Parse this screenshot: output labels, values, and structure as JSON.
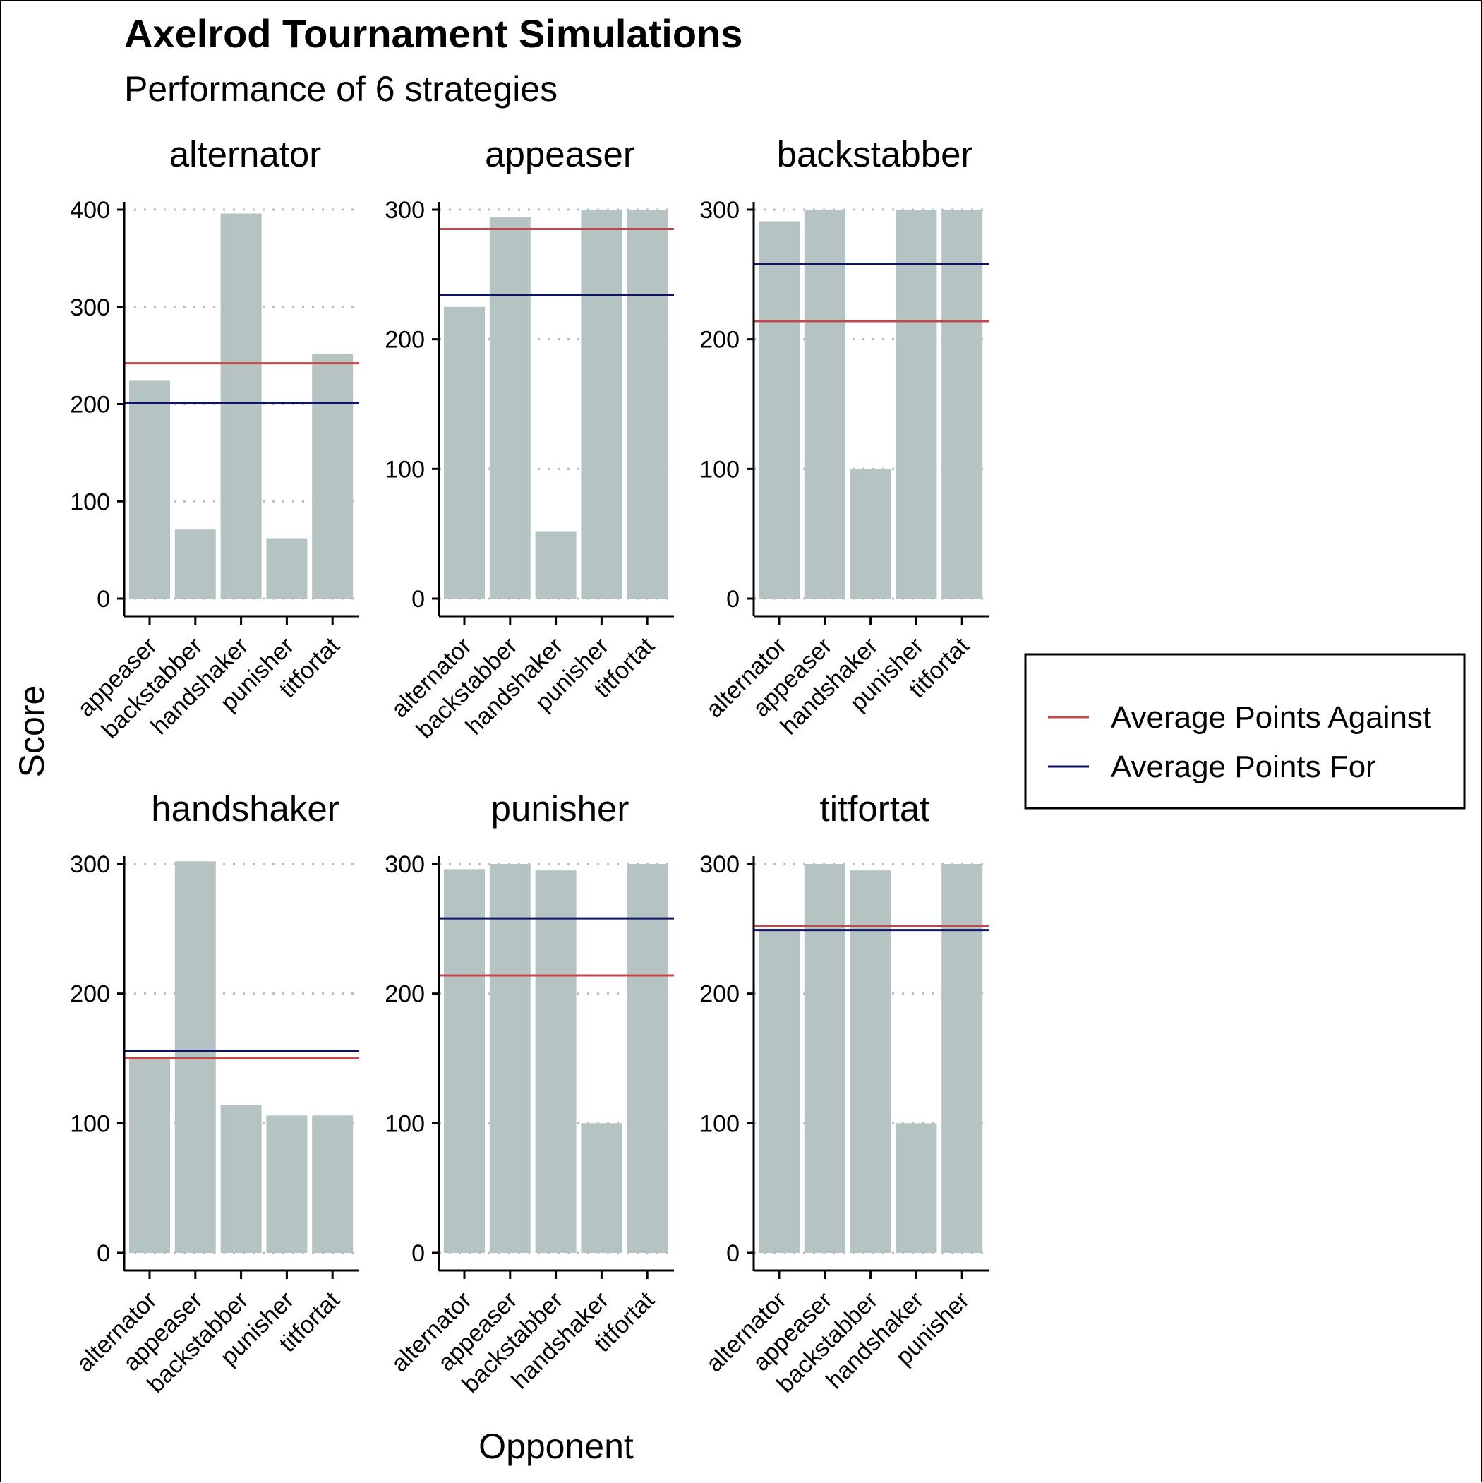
{
  "chart_data": {
    "type": "bar",
    "title": "Axelrod Tournament Simulations",
    "subtitle": "Performance of 6 strategies",
    "xlabel": "Opponent",
    "ylabel": "Score",
    "grid": "dotted horizontal major gridlines",
    "legend_position": "right",
    "colors": {
      "bar": "#b5c3c3",
      "Average Points Against": "#c0484d",
      "Average Points For": "#0e1566",
      "grid": "#bbbbbb",
      "axis": "#000000"
    },
    "legend": [
      {
        "label": "Average Points Against",
        "color": "#c0484d"
      },
      {
        "label": "Average Points For",
        "color": "#0e1566"
      }
    ],
    "facets": [
      {
        "name": "alternator",
        "categories": [
          "appeaser",
          "backstabber",
          "handshaker",
          "punisher",
          "titfortat"
        ],
        "values": [
          224,
          71,
          396,
          62,
          252
        ],
        "avg_points_against": 242,
        "avg_points_for": 201,
        "ylim": [
          0,
          400
        ],
        "yticks": [
          0,
          100,
          200,
          300,
          400
        ]
      },
      {
        "name": "appeaser",
        "categories": [
          "alternator",
          "backstabber",
          "handshaker",
          "punisher",
          "titfortat"
        ],
        "values": [
          225,
          294,
          52,
          300,
          300
        ],
        "avg_points_against": 285,
        "avg_points_for": 234,
        "ylim": [
          0,
          300
        ],
        "yticks": [
          0,
          100,
          200,
          300
        ]
      },
      {
        "name": "backstabber",
        "categories": [
          "alternator",
          "appeaser",
          "handshaker",
          "punisher",
          "titfortat"
        ],
        "values": [
          291,
          300,
          100,
          300,
          300
        ],
        "avg_points_against": 214,
        "avg_points_for": 258,
        "ylim": [
          0,
          300
        ],
        "yticks": [
          0,
          100,
          200,
          300
        ]
      },
      {
        "name": "handshaker",
        "categories": [
          "alternator",
          "appeaser",
          "backstabber",
          "punisher",
          "titfortat"
        ],
        "values": [
          150,
          302,
          114,
          106,
          106
        ],
        "avg_points_against": 150,
        "avg_points_for": 156,
        "ylim": [
          0,
          300
        ],
        "yticks": [
          0,
          100,
          200,
          300
        ]
      },
      {
        "name": "punisher",
        "categories": [
          "alternator",
          "appeaser",
          "backstabber",
          "handshaker",
          "titfortat"
        ],
        "values": [
          296,
          300,
          295,
          100,
          300
        ],
        "avg_points_against": 214,
        "avg_points_for": 258,
        "ylim": [
          0,
          300
        ],
        "yticks": [
          0,
          100,
          200,
          300
        ]
      },
      {
        "name": "titfortat",
        "categories": [
          "alternator",
          "appeaser",
          "backstabber",
          "handshaker",
          "punisher"
        ],
        "values": [
          250,
          300,
          295,
          100,
          300
        ],
        "avg_points_against": 252,
        "avg_points_for": 249,
        "ylim": [
          0,
          300
        ],
        "yticks": [
          0,
          100,
          200,
          300
        ]
      }
    ]
  }
}
